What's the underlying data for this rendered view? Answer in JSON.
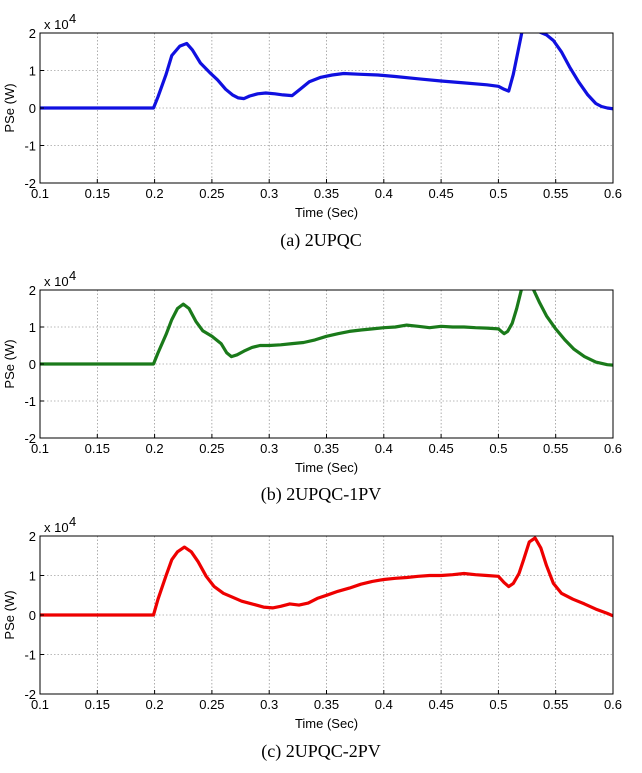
{
  "chart_data": [
    {
      "type": "line",
      "caption": "(a) 2UPQC",
      "xlabel": "Time (Sec)",
      "ylabel": "PSe (W)",
      "y_exponent_label": "x 10",
      "y_exponent_power": "4",
      "xlim": [
        0.1,
        0.6
      ],
      "ylim": [
        -2,
        2
      ],
      "xticks": [
        "0.1",
        "0.15",
        "0.2",
        "0.25",
        "0.3",
        "0.35",
        "0.4",
        "0.45",
        "0.5",
        "0.55",
        "0.6"
      ],
      "yticks": [
        "2",
        "1",
        "0",
        "-1",
        "-2"
      ],
      "grid": true,
      "color": "#1010e0",
      "series": [
        {
          "x": [
            0.1,
            0.199,
            0.203,
            0.21,
            0.215,
            0.222,
            0.228,
            0.233,
            0.24,
            0.248,
            0.255,
            0.262,
            0.268,
            0.273,
            0.278,
            0.283,
            0.29,
            0.297,
            0.305,
            0.312,
            0.32,
            0.327,
            0.335,
            0.345,
            0.355,
            0.365,
            0.38,
            0.395,
            0.41,
            0.43,
            0.45,
            0.47,
            0.49,
            0.5,
            0.505,
            0.509,
            0.513,
            0.517,
            0.521,
            0.526,
            0.534,
            0.542,
            0.548,
            0.555,
            0.562,
            0.57,
            0.578,
            0.585,
            0.59,
            0.595,
            0.6
          ],
          "y": [
            0,
            0,
            0.3,
            0.9,
            1.4,
            1.65,
            1.72,
            1.55,
            1.2,
            0.95,
            0.75,
            0.5,
            0.35,
            0.27,
            0.25,
            0.32,
            0.38,
            0.4,
            0.38,
            0.35,
            0.33,
            0.5,
            0.7,
            0.82,
            0.88,
            0.92,
            0.9,
            0.88,
            0.84,
            0.78,
            0.72,
            0.67,
            0.62,
            0.58,
            0.5,
            0.45,
            0.9,
            1.5,
            2.1,
            2.2,
            2.05,
            1.95,
            1.8,
            1.5,
            1.1,
            0.7,
            0.35,
            0.12,
            0.04,
            0.0,
            -0.02
          ]
        }
      ]
    },
    {
      "type": "line",
      "caption": "(b) 2UPQC-1PV",
      "xlabel": "Time (Sec)",
      "ylabel": "PSe (W)",
      "y_exponent_label": "x 10",
      "y_exponent_power": "4",
      "xlim": [
        0.1,
        0.6
      ],
      "ylim": [
        -2,
        2
      ],
      "xticks": [
        "0.1",
        "0.15",
        "0.2",
        "0.25",
        "0.3",
        "0.35",
        "0.4",
        "0.45",
        "0.5",
        "0.55",
        "0.6"
      ],
      "yticks": [
        "2",
        "1",
        "0",
        "-1",
        "-2"
      ],
      "grid": true,
      "color": "#1a7a1a",
      "series": [
        {
          "x": [
            0.1,
            0.199,
            0.203,
            0.21,
            0.215,
            0.22,
            0.225,
            0.23,
            0.236,
            0.242,
            0.25,
            0.258,
            0.263,
            0.267,
            0.272,
            0.278,
            0.285,
            0.292,
            0.3,
            0.31,
            0.32,
            0.33,
            0.34,
            0.35,
            0.36,
            0.37,
            0.38,
            0.39,
            0.4,
            0.41,
            0.42,
            0.43,
            0.44,
            0.45,
            0.46,
            0.47,
            0.48,
            0.49,
            0.5,
            0.505,
            0.508,
            0.512,
            0.516,
            0.52,
            0.525,
            0.53,
            0.536,
            0.542,
            0.55,
            0.558,
            0.566,
            0.575,
            0.585,
            0.595,
            0.6
          ],
          "y": [
            0,
            0,
            0.3,
            0.8,
            1.2,
            1.5,
            1.62,
            1.5,
            1.15,
            0.9,
            0.75,
            0.55,
            0.3,
            0.2,
            0.25,
            0.35,
            0.45,
            0.5,
            0.5,
            0.52,
            0.55,
            0.58,
            0.65,
            0.75,
            0.82,
            0.88,
            0.92,
            0.95,
            0.98,
            1.0,
            1.05,
            1.02,
            0.98,
            1.02,
            1.0,
            1.0,
            0.98,
            0.97,
            0.95,
            0.82,
            0.88,
            1.1,
            1.5,
            2.0,
            2.25,
            2.05,
            1.65,
            1.3,
            0.95,
            0.65,
            0.4,
            0.2,
            0.05,
            -0.02,
            -0.03
          ]
        }
      ]
    },
    {
      "type": "line",
      "caption": "(c) 2UPQC-2PV",
      "xlabel": "Time (Sec)",
      "ylabel": "PSe (W)",
      "y_exponent_label": "x 10",
      "y_exponent_power": "4",
      "xlim": [
        0.1,
        0.6
      ],
      "ylim": [
        -2,
        2
      ],
      "xticks": [
        "0.1",
        "0.15",
        "0.2",
        "0.25",
        "0.3",
        "0.35",
        "0.4",
        "0.45",
        "0.5",
        "0.55",
        "0.6"
      ],
      "yticks": [
        "2",
        "1",
        "0",
        "-1",
        "-2"
      ],
      "grid": true,
      "color": "#ee0000",
      "series": [
        {
          "x": [
            0.1,
            0.199,
            0.203,
            0.21,
            0.215,
            0.22,
            0.226,
            0.232,
            0.238,
            0.245,
            0.252,
            0.26,
            0.268,
            0.276,
            0.285,
            0.295,
            0.303,
            0.31,
            0.318,
            0.326,
            0.334,
            0.342,
            0.35,
            0.36,
            0.37,
            0.38,
            0.39,
            0.4,
            0.41,
            0.42,
            0.43,
            0.44,
            0.45,
            0.46,
            0.47,
            0.48,
            0.49,
            0.5,
            0.505,
            0.509,
            0.513,
            0.518,
            0.522,
            0.527,
            0.532,
            0.537,
            0.542,
            0.548,
            0.555,
            0.565,
            0.575,
            0.585,
            0.595,
            0.6
          ],
          "y": [
            0,
            0,
            0.4,
            1.0,
            1.4,
            1.6,
            1.72,
            1.6,
            1.35,
            0.98,
            0.72,
            0.55,
            0.45,
            0.35,
            0.28,
            0.2,
            0.18,
            0.22,
            0.28,
            0.25,
            0.3,
            0.42,
            0.5,
            0.6,
            0.68,
            0.78,
            0.85,
            0.9,
            0.93,
            0.95,
            0.98,
            1.0,
            1.0,
            1.02,
            1.05,
            1.02,
            1.0,
            0.98,
            0.82,
            0.72,
            0.8,
            1.05,
            1.4,
            1.85,
            1.95,
            1.7,
            1.25,
            0.8,
            0.55,
            0.4,
            0.28,
            0.15,
            0.04,
            -0.02
          ]
        }
      ]
    }
  ]
}
